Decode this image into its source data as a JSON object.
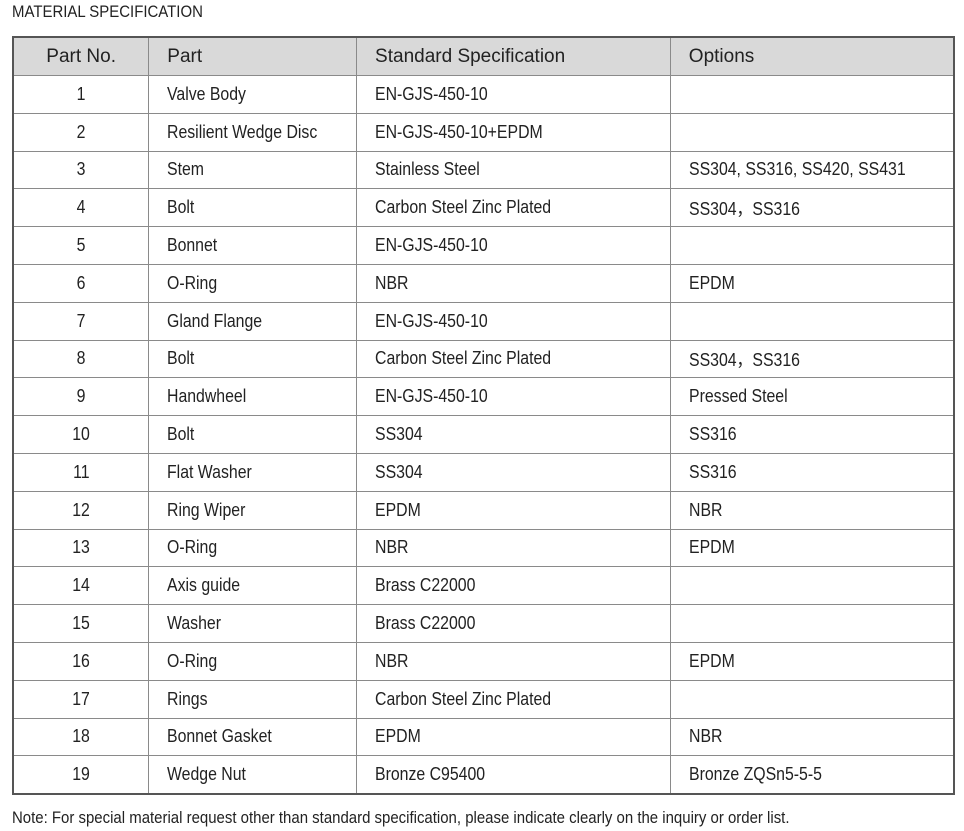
{
  "title": "MATERIAL SPECIFICATION",
  "table": {
    "headers": [
      "Part No.",
      "Part",
      "Standard Specification",
      "Options"
    ],
    "rows": [
      [
        "1",
        "Valve Body",
        "EN-GJS-450-10",
        ""
      ],
      [
        "2",
        "Resilient Wedge Disc",
        "EN-GJS-450-10+EPDM",
        ""
      ],
      [
        "3",
        "Stem",
        "Stainless Steel",
        "SS304, SS316, SS420, SS431"
      ],
      [
        "4",
        "Bolt",
        "Carbon Steel Zinc Plated",
        "SS304，SS316"
      ],
      [
        "5",
        "Bonnet",
        "EN-GJS-450-10",
        ""
      ],
      [
        "6",
        "O-Ring",
        "NBR",
        "EPDM"
      ],
      [
        "7",
        "Gland Flange",
        "EN-GJS-450-10",
        ""
      ],
      [
        "8",
        "Bolt",
        "Carbon Steel Zinc Plated",
        "SS304，SS316"
      ],
      [
        "9",
        "Handwheel",
        "EN-GJS-450-10",
        "Pressed Steel"
      ],
      [
        "10",
        "Bolt",
        "SS304",
        "SS316"
      ],
      [
        "11",
        "Flat Washer",
        "SS304",
        "SS316"
      ],
      [
        "12",
        "Ring Wiper",
        "EPDM",
        "NBR"
      ],
      [
        "13",
        "O-Ring",
        "NBR",
        "EPDM"
      ],
      [
        "14",
        "Axis guide",
        "Brass C22000",
        ""
      ],
      [
        "15",
        "Washer",
        "Brass C22000",
        ""
      ],
      [
        "16",
        "O-Ring",
        "NBR",
        "EPDM"
      ],
      [
        "17",
        "Rings",
        "Carbon Steel Zinc Plated",
        ""
      ],
      [
        "18",
        "Bonnet Gasket",
        "EPDM",
        "NBR"
      ],
      [
        "19",
        "Wedge Nut",
        "Bronze C95400",
        "Bronze ZQSn5-5-5"
      ]
    ]
  },
  "note": "Note: For special material request other than standard specification, please indicate clearly on the inquiry or order list.",
  "colors": {
    "header_bg": "#d9d9d9",
    "border": "#555555"
  }
}
